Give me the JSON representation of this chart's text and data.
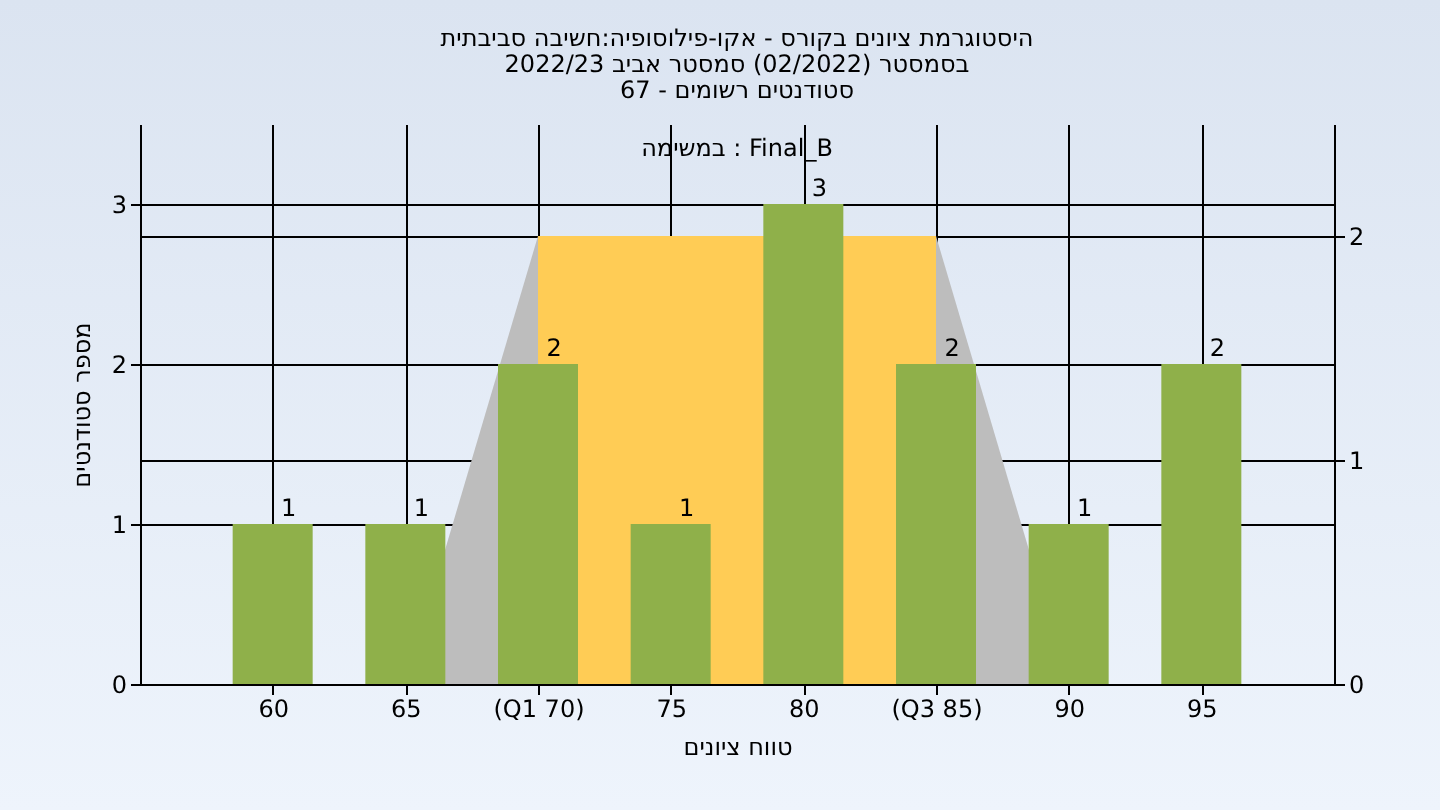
{
  "chart_data": {
    "type": "bar",
    "title": [
      "היסטוגרמת ציונים בקורס - אקו-פילוסופיה:חשיבה סביבתית",
      "בסמסטר  (02/2022)  סמסטר אביב 2022/23",
      "סטודנטים רשומים - 67"
    ],
    "annotations": [
      "במשימה : Final_B"
    ],
    "xlabel": "טווח ציונים",
    "ylabel": "מספר סטודנטים",
    "categories": [
      "60",
      "65",
      "(Q1 70)",
      "75",
      "80",
      "(Q3 85)",
      "90",
      "95"
    ],
    "series": [
      {
        "type": "area",
        "axis": "y2",
        "color": "#bdbdbd",
        "values": [
          null,
          0,
          2,
          null,
          null,
          2,
          0,
          null
        ]
      },
      {
        "type": "area",
        "axis": "y2",
        "color": "#ffcc55",
        "values": [
          null,
          null,
          2,
          2,
          null,
          2,
          null,
          null
        ]
      },
      {
        "color": "#8fb04a",
        "values": [
          1,
          1,
          2,
          1,
          3,
          2,
          1,
          2
        ],
        "value_labels": [
          "1",
          "1",
          "2",
          "1",
          "3",
          "2",
          "1",
          "2"
        ]
      }
    ],
    "ylim": [
      0,
      3.5
    ],
    "yticks": [
      0,
      1,
      2,
      3
    ],
    "y2lim": [
      0,
      2.5
    ],
    "y2ticks": [
      0,
      1,
      2
    ],
    "grid": true
  }
}
